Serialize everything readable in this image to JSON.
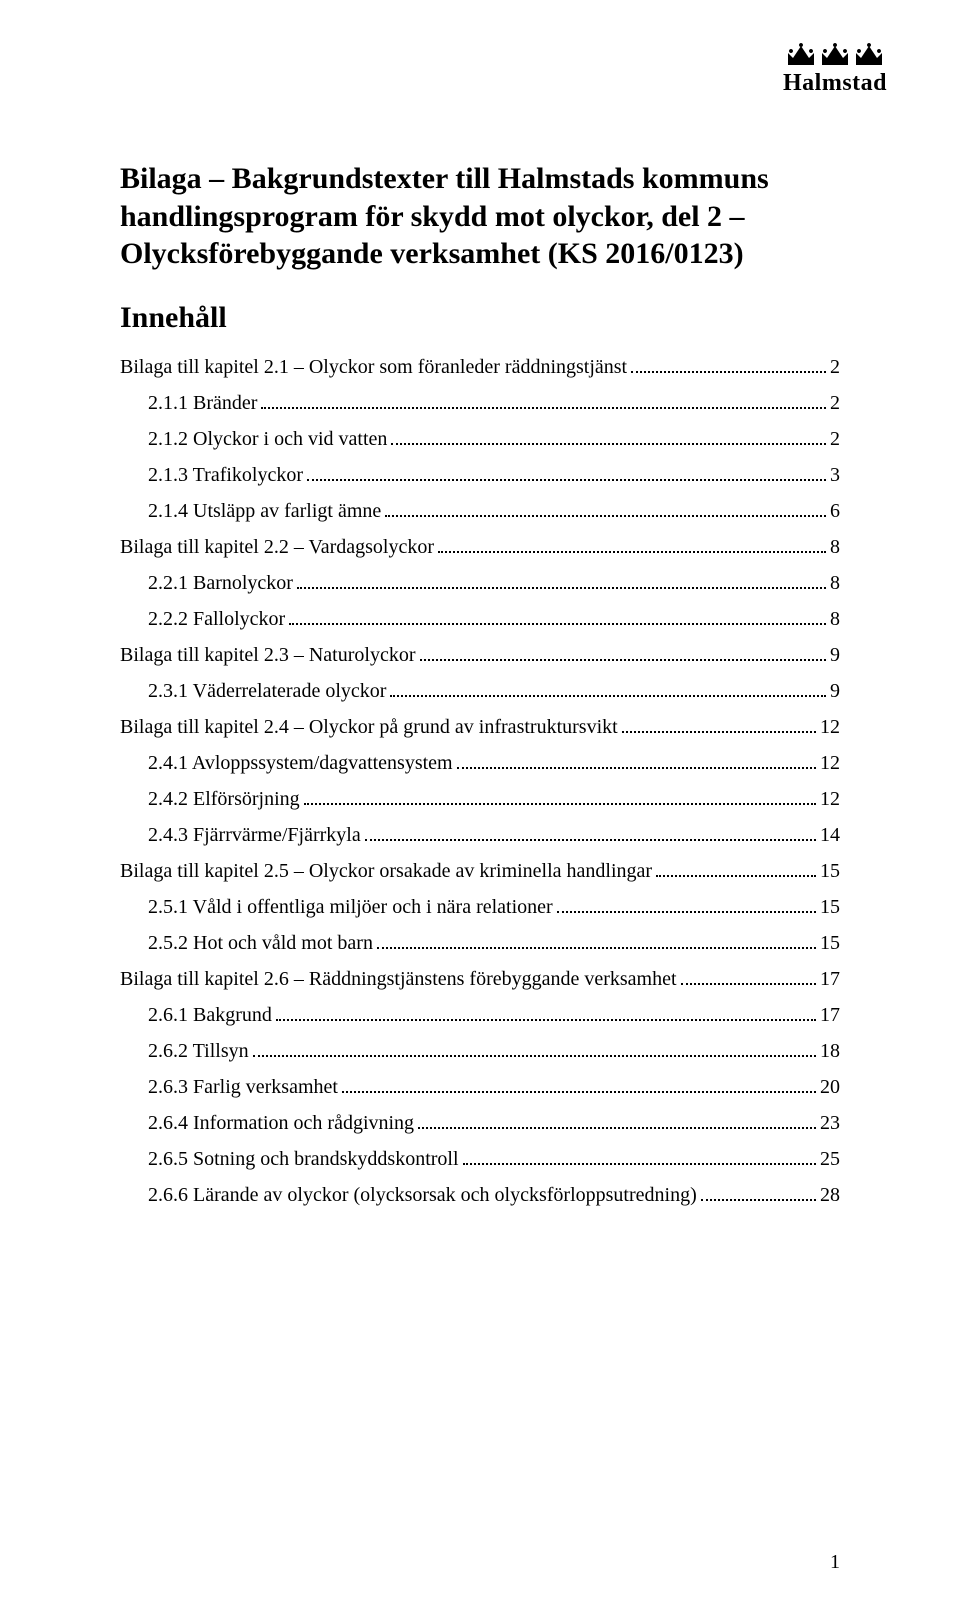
{
  "logo": {
    "text": "Halmstad"
  },
  "title_lines": [
    "Bilaga – Bakgrundstexter till Halmstads kommuns",
    "handlingsprogram för skydd mot olyckor, del 2 –",
    "Olycksförebyggande verksamhet (KS 2016/0123)"
  ],
  "innehall_label": "Innehåll",
  "toc": [
    {
      "level": 1,
      "label": "Bilaga till kapitel 2.1 – Olyckor som föranleder räddningstjänst",
      "page": "2"
    },
    {
      "level": 2,
      "label": "2.1.1 Bränder",
      "page": "2"
    },
    {
      "level": 2,
      "label": "2.1.2 Olyckor i och vid vatten",
      "page": "2"
    },
    {
      "level": 2,
      "label": "2.1.3 Trafikolyckor",
      "page": "3"
    },
    {
      "level": 2,
      "label": "2.1.4 Utsläpp av farligt ämne",
      "page": "6"
    },
    {
      "level": 1,
      "label": "Bilaga till kapitel 2.2 – Vardagsolyckor",
      "page": "8"
    },
    {
      "level": 2,
      "label": "2.2.1  Barnolyckor",
      "page": "8"
    },
    {
      "level": 2,
      "label": "2.2.2  Fallolyckor",
      "page": "8"
    },
    {
      "level": 1,
      "label": "Bilaga till kapitel 2.3 – Naturolyckor",
      "page": "9"
    },
    {
      "level": 2,
      "label": "2.3.1 Väderrelaterade olyckor",
      "page": "9"
    },
    {
      "level": 1,
      "label": "Bilaga till kapitel 2.4 – Olyckor på grund av infrastruktursvikt",
      "page": "12"
    },
    {
      "level": 2,
      "label": "2.4.1 Avloppssystem/dagvattensystem",
      "page": "12"
    },
    {
      "level": 2,
      "label": "2.4.2  Elförsörjning",
      "page": "12"
    },
    {
      "level": 2,
      "label": "2.4.3 Fjärrvärme/Fjärrkyla",
      "page": "14"
    },
    {
      "level": 1,
      "label": "Bilaga till kapitel 2.5 – Olyckor orsakade av kriminella handlingar",
      "page": "15"
    },
    {
      "level": 2,
      "label": "2.5.1 Våld i offentliga miljöer och i nära relationer",
      "page": "15"
    },
    {
      "level": 2,
      "label": "2.5.2 Hot och våld mot barn",
      "page": "15"
    },
    {
      "level": 1,
      "label": "Bilaga till kapitel 2.6 – Räddningstjänstens förebyggande verksamhet",
      "page": "17"
    },
    {
      "level": 2,
      "label": "2.6.1 Bakgrund",
      "page": "17"
    },
    {
      "level": 2,
      "label": "2.6.2 Tillsyn",
      "page": "18"
    },
    {
      "level": 2,
      "label": "2.6.3 Farlig verksamhet",
      "page": "20"
    },
    {
      "level": 2,
      "label": "2.6.4 Information och rådgivning",
      "page": "23"
    },
    {
      "level": 2,
      "label": "2.6.5 Sotning och brandskyddskontroll",
      "page": "25"
    },
    {
      "level": 2,
      "label": "2.6.6 Lärande av olyckor (olycksorsak och olycksförloppsutredning)",
      "page": "28"
    }
  ],
  "page_number": "1",
  "colors": {
    "text": "#000000",
    "background": "#ffffff"
  },
  "fonts": {
    "body_family": "Times New Roman",
    "title_size_pt": 22,
    "body_size_pt": 15
  }
}
